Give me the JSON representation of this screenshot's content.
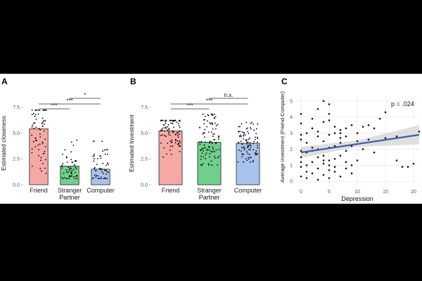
{
  "chart_data": [
    {
      "panel_label": "A",
      "type": "bar",
      "categories": [
        "Friend",
        "Stranger",
        "Computer"
      ],
      "values": [
        5.4,
        1.8,
        1.5
      ],
      "bar_colors": [
        "#f6a9a4",
        "#6fd08c",
        "#a9c4ec"
      ],
      "xlabel": "Partner",
      "ylabel": "Estimated closeness",
      "ylim": [
        0,
        8
      ],
      "yticks": [
        0.0,
        2.5,
        5.0,
        7.5
      ],
      "grid": false,
      "jitter_points": true,
      "significance": [
        {
          "from": "Friend",
          "to": "Stranger",
          "label": "***"
        },
        {
          "from": "Friend",
          "to": "Computer",
          "label": "***"
        },
        {
          "from": "Stranger",
          "to": "Computer",
          "label": "*"
        }
      ]
    },
    {
      "panel_label": "B",
      "type": "bar",
      "categories": [
        "Friend",
        "Stranger",
        "Computer"
      ],
      "values": [
        5.2,
        4.1,
        4.0
      ],
      "bar_colors": [
        "#f6a9a4",
        "#6fd08c",
        "#a9c4ec"
      ],
      "xlabel": "Partner",
      "ylabel": "Estimated Investment",
      "ylim": [
        0,
        8
      ],
      "yticks": [
        0.0,
        2.5,
        5.0,
        7.5
      ],
      "grid": false,
      "jitter_points": true,
      "significance": [
        {
          "from": "Friend",
          "to": "Stranger",
          "label": "***"
        },
        {
          "from": "Friend",
          "to": "Computer",
          "label": "***"
        },
        {
          "from": "Stranger",
          "to": "Computer",
          "label": "n.s."
        }
      ]
    },
    {
      "panel_label": "C",
      "type": "scatter",
      "xlabel": "Depression",
      "ylabel": "Average investment (Friend-Computer)",
      "xlim": [
        -1,
        21
      ],
      "ylim": [
        -0.3,
        5.3
      ],
      "xticks": [
        0,
        5,
        10,
        15,
        20
      ],
      "yticks": [
        0,
        1,
        2,
        3,
        4,
        5
      ],
      "grid": true,
      "annotation": "p = .024",
      "fit_line": {
        "x": [
          0,
          21
        ],
        "y": [
          1.8,
          2.9
        ],
        "color": "#3a5fae",
        "band_color": "#d9d9d9"
      },
      "points": [
        [
          0,
          0.3
        ],
        [
          0,
          0.9
        ],
        [
          0,
          1.2
        ],
        [
          0,
          1.5
        ],
        [
          0,
          1.9
        ],
        [
          0,
          2.6
        ],
        [
          0,
          2.9
        ],
        [
          0,
          3.6
        ],
        [
          0,
          4.2
        ],
        [
          1,
          0.6
        ],
        [
          1,
          1.0
        ],
        [
          1,
          1.8
        ],
        [
          1,
          2.4
        ],
        [
          1,
          3.0
        ],
        [
          1,
          0.2
        ],
        [
          2,
          0.5
        ],
        [
          2,
          1.2
        ],
        [
          2,
          1.9
        ],
        [
          2,
          2.1
        ],
        [
          2,
          3.3
        ],
        [
          2,
          3.9
        ],
        [
          3,
          0.8
        ],
        [
          3,
          1.5
        ],
        [
          3,
          2.0
        ],
        [
          3,
          2.8
        ],
        [
          3,
          3.1
        ],
        [
          3,
          4.5
        ],
        [
          3,
          0.1
        ],
        [
          4,
          0.4
        ],
        [
          4,
          1.1
        ],
        [
          4,
          1.6
        ],
        [
          4,
          2.5
        ],
        [
          4,
          3.7
        ],
        [
          4,
          5.0
        ],
        [
          4,
          1.3
        ],
        [
          5,
          0.2
        ],
        [
          5,
          1.0
        ],
        [
          5,
          1.3
        ],
        [
          5,
          2.1
        ],
        [
          5,
          2.9
        ],
        [
          5,
          3.8
        ],
        [
          5,
          4.2
        ],
        [
          5,
          4.8
        ],
        [
          5,
          0.7
        ],
        [
          6,
          0.6
        ],
        [
          6,
          1.4
        ],
        [
          6,
          2.2
        ],
        [
          6,
          3.0
        ],
        [
          6,
          3.4
        ],
        [
          6,
          0.9
        ],
        [
          7,
          0.3
        ],
        [
          7,
          1.6
        ],
        [
          7,
          2.4
        ],
        [
          7,
          2.7
        ],
        [
          7,
          3.2
        ],
        [
          7,
          3.0
        ],
        [
          8,
          0.8
        ],
        [
          8,
          1.9
        ],
        [
          8,
          2.8
        ],
        [
          8,
          3.3
        ],
        [
          8,
          1.2
        ],
        [
          9,
          1.0
        ],
        [
          9,
          2.2
        ],
        [
          9,
          3.5
        ],
        [
          9,
          0.5
        ],
        [
          10,
          2.5
        ],
        [
          10,
          1.3
        ],
        [
          10,
          3.0
        ],
        [
          11,
          3.4
        ],
        [
          11,
          2.0
        ],
        [
          12,
          2.6
        ],
        [
          12,
          3.5
        ],
        [
          13,
          1.8
        ],
        [
          13,
          3.3
        ],
        [
          14,
          3.9
        ],
        [
          15,
          4.3
        ],
        [
          15,
          2.7
        ],
        [
          17,
          2.8
        ],
        [
          17,
          1.3
        ],
        [
          18,
          0.9
        ],
        [
          19,
          0.9
        ],
        [
          20,
          1.1
        ],
        [
          21,
          3.1
        ]
      ]
    }
  ]
}
